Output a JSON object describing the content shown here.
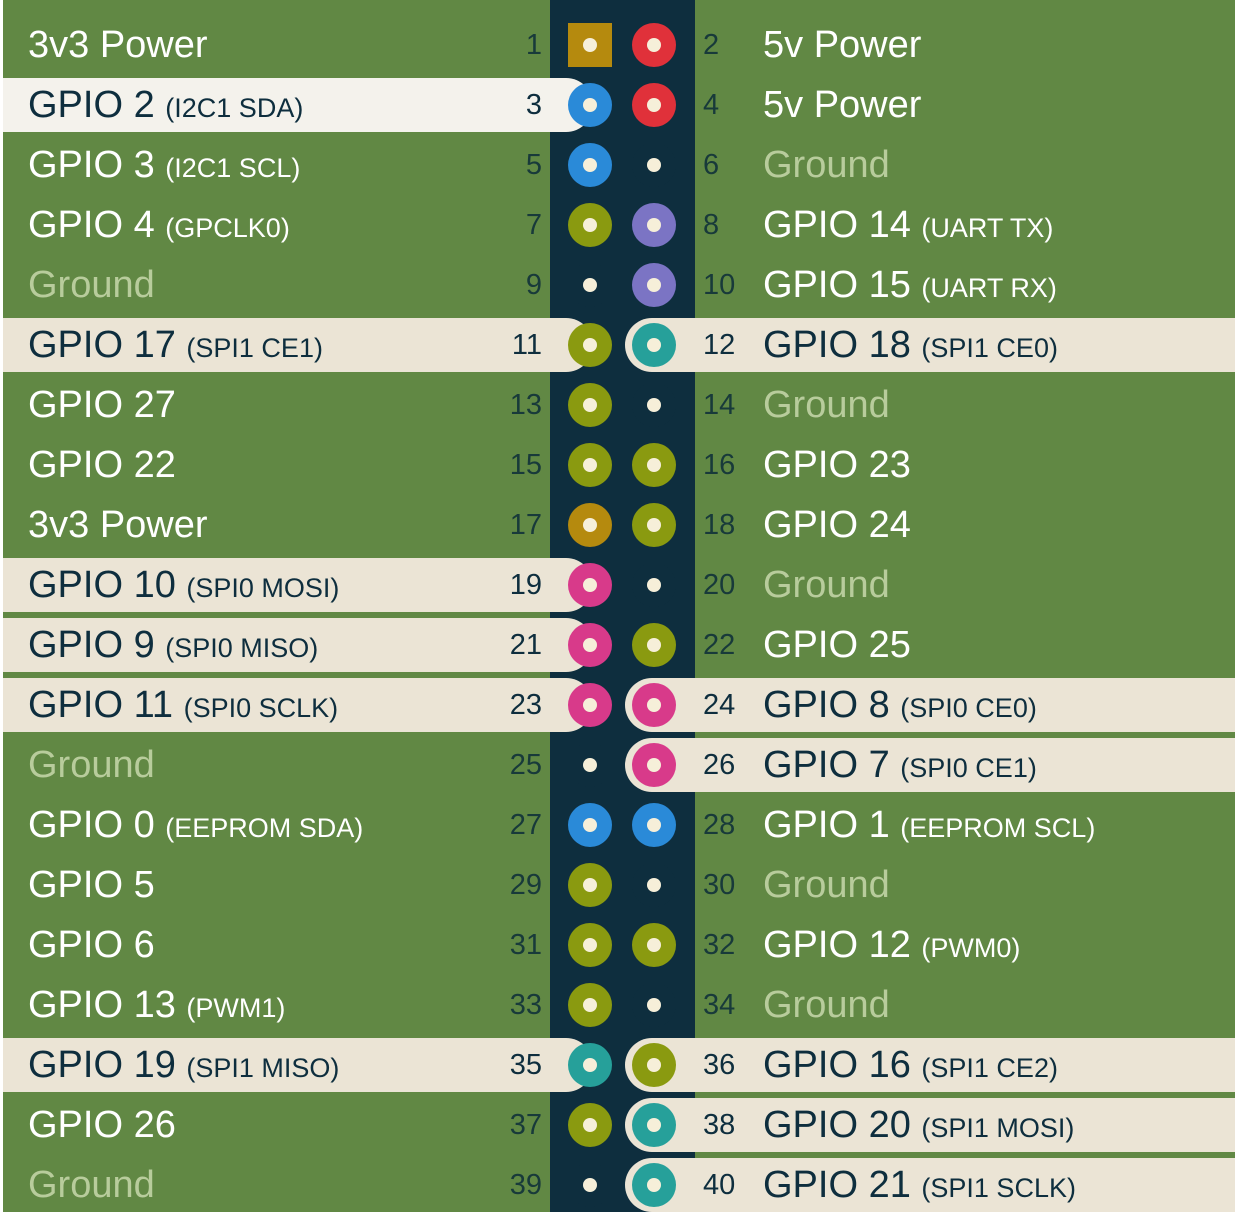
{
  "colors": {
    "board_green": "#618844",
    "header_strip": "#0e2e3e",
    "highlight_row": "#ebe4d5",
    "highlight_row_selected": "#f4f2ec",
    "text_light": "#ffffff",
    "text_dark": "#0e2e3e",
    "text_ground": "#b8cc9c",
    "num_on_green": "#183a3a",
    "pin_power_3v3": "#b58a0e",
    "pin_power_5v": "#e0313a",
    "pin_ground": "#0e2e3e",
    "pin_gpio": "#8a9a10",
    "pin_i2c": "#2a8ad8",
    "pin_uart": "#7b74c4",
    "pin_spi0": "#d83a8a",
    "pin_spi1": "#26a09a",
    "pin_dot": "#f6efd9"
  },
  "pins": [
    {
      "num": "1",
      "name": "3v3 Power",
      "alt": "",
      "kind": "power3",
      "hl": "none"
    },
    {
      "num": "2",
      "name": "5v Power",
      "alt": "",
      "kind": "power5",
      "hl": "none"
    },
    {
      "num": "3",
      "name": "GPIO 2",
      "alt": "(I2C1 SDA)",
      "kind": "i2c",
      "hl": "selected"
    },
    {
      "num": "4",
      "name": "5v Power",
      "alt": "",
      "kind": "power5",
      "hl": "none"
    },
    {
      "num": "5",
      "name": "GPIO 3",
      "alt": "(I2C1 SCL)",
      "kind": "i2c",
      "hl": "none"
    },
    {
      "num": "6",
      "name": "Ground",
      "alt": "",
      "kind": "ground",
      "hl": "none"
    },
    {
      "num": "7",
      "name": "GPIO 4",
      "alt": "(GPCLK0)",
      "kind": "gpio",
      "hl": "none"
    },
    {
      "num": "8",
      "name": "GPIO 14",
      "alt": "(UART TX)",
      "kind": "uart",
      "hl": "none"
    },
    {
      "num": "9",
      "name": "Ground",
      "alt": "",
      "kind": "ground",
      "hl": "none"
    },
    {
      "num": "10",
      "name": "GPIO 15",
      "alt": "(UART RX)",
      "kind": "uart",
      "hl": "none"
    },
    {
      "num": "11",
      "name": "GPIO 17",
      "alt": "(SPI1 CE1)",
      "kind": "gpio",
      "hl": "group"
    },
    {
      "num": "12",
      "name": "GPIO 18",
      "alt": "(SPI1 CE0)",
      "kind": "spi1",
      "hl": "group"
    },
    {
      "num": "13",
      "name": "GPIO 27",
      "alt": "",
      "kind": "gpio",
      "hl": "none"
    },
    {
      "num": "14",
      "name": "Ground",
      "alt": "",
      "kind": "ground",
      "hl": "none"
    },
    {
      "num": "15",
      "name": "GPIO 22",
      "alt": "",
      "kind": "gpio",
      "hl": "none"
    },
    {
      "num": "16",
      "name": "GPIO 23",
      "alt": "",
      "kind": "gpio",
      "hl": "none"
    },
    {
      "num": "17",
      "name": "3v3 Power",
      "alt": "",
      "kind": "power3",
      "hl": "none"
    },
    {
      "num": "18",
      "name": "GPIO 24",
      "alt": "",
      "kind": "gpio",
      "hl": "none"
    },
    {
      "num": "19",
      "name": "GPIO 10",
      "alt": "(SPI0 MOSI)",
      "kind": "spi0",
      "hl": "group"
    },
    {
      "num": "20",
      "name": "Ground",
      "alt": "",
      "kind": "ground",
      "hl": "none"
    },
    {
      "num": "21",
      "name": "GPIO 9",
      "alt": "(SPI0 MISO)",
      "kind": "spi0",
      "hl": "group"
    },
    {
      "num": "22",
      "name": "GPIO 25",
      "alt": "",
      "kind": "gpio",
      "hl": "none"
    },
    {
      "num": "23",
      "name": "GPIO 11",
      "alt": "(SPI0 SCLK)",
      "kind": "spi0",
      "hl": "group"
    },
    {
      "num": "24",
      "name": "GPIO 8",
      "alt": "(SPI0 CE0)",
      "kind": "spi0",
      "hl": "group"
    },
    {
      "num": "25",
      "name": "Ground",
      "alt": "",
      "kind": "ground",
      "hl": "none"
    },
    {
      "num": "26",
      "name": "GPIO 7",
      "alt": "(SPI0 CE1)",
      "kind": "spi0",
      "hl": "group"
    },
    {
      "num": "27",
      "name": "GPIO 0",
      "alt": "(EEPROM SDA)",
      "kind": "i2c",
      "hl": "none"
    },
    {
      "num": "28",
      "name": "GPIO 1",
      "alt": "(EEPROM SCL)",
      "kind": "i2c",
      "hl": "none"
    },
    {
      "num": "29",
      "name": "GPIO 5",
      "alt": "",
      "kind": "gpio",
      "hl": "none"
    },
    {
      "num": "30",
      "name": "Ground",
      "alt": "",
      "kind": "ground",
      "hl": "none"
    },
    {
      "num": "31",
      "name": "GPIO 6",
      "alt": "",
      "kind": "gpio",
      "hl": "none"
    },
    {
      "num": "32",
      "name": "GPIO 12",
      "alt": "(PWM0)",
      "kind": "gpio",
      "hl": "none"
    },
    {
      "num": "33",
      "name": "GPIO 13",
      "alt": "(PWM1)",
      "kind": "gpio",
      "hl": "none"
    },
    {
      "num": "34",
      "name": "Ground",
      "alt": "",
      "kind": "ground",
      "hl": "none"
    },
    {
      "num": "35",
      "name": "GPIO 19",
      "alt": "(SPI1 MISO)",
      "kind": "spi1",
      "hl": "group"
    },
    {
      "num": "36",
      "name": "GPIO 16",
      "alt": "(SPI1 CE2)",
      "kind": "gpio",
      "hl": "group"
    },
    {
      "num": "37",
      "name": "GPIO 26",
      "alt": "",
      "kind": "gpio",
      "hl": "none"
    },
    {
      "num": "38",
      "name": "GPIO 20",
      "alt": "(SPI1 MOSI)",
      "kind": "spi1",
      "hl": "group"
    },
    {
      "num": "39",
      "name": "Ground",
      "alt": "",
      "kind": "ground",
      "hl": "none"
    },
    {
      "num": "40",
      "name": "GPIO 21",
      "alt": "(SPI1 SCLK)",
      "kind": "spi1",
      "hl": "group"
    }
  ]
}
